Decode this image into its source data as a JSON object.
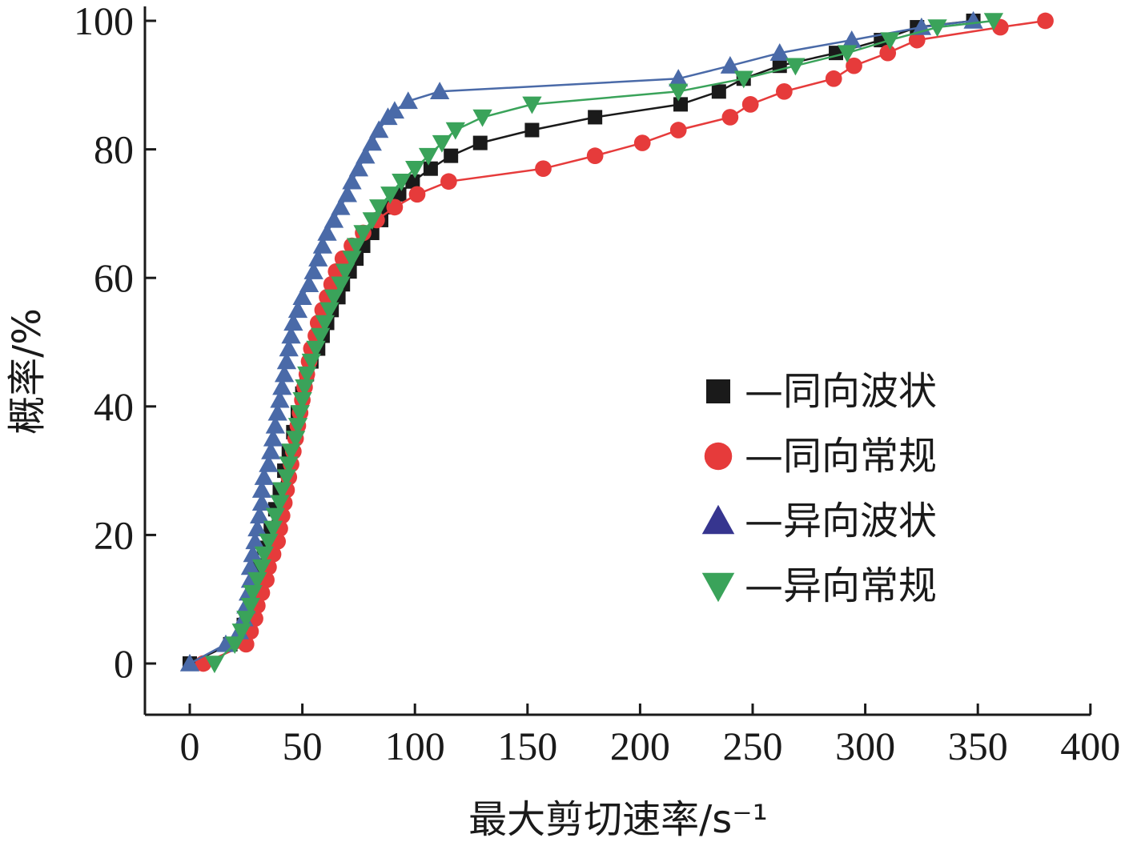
{
  "chart_data": {
    "type": "line",
    "xlabel": "最大剪切速率/s⁻¹",
    "ylabel": "概率/%",
    "xlim": [
      0,
      400
    ],
    "ylim": [
      0,
      100
    ],
    "xticks": [
      0,
      50,
      100,
      150,
      200,
      250,
      300,
      350,
      400
    ],
    "yticks": [
      0,
      20,
      40,
      60,
      80,
      100
    ],
    "grid": false,
    "legend_position": "center-right",
    "series": [
      {
        "name": "—同向波状",
        "marker": "square",
        "color": "#1a1a1a",
        "points": [
          [
            0,
            0
          ],
          [
            18,
            3
          ],
          [
            24,
            6
          ],
          [
            27,
            9
          ],
          [
            29,
            12
          ],
          [
            31,
            15
          ],
          [
            33,
            18
          ],
          [
            36,
            21
          ],
          [
            38,
            24
          ],
          [
            40,
            27
          ],
          [
            42,
            30
          ],
          [
            44,
            33
          ],
          [
            46,
            36
          ],
          [
            48,
            39
          ],
          [
            50,
            42
          ],
          [
            52,
            45
          ],
          [
            54,
            47
          ],
          [
            57,
            49
          ],
          [
            59,
            51
          ],
          [
            61,
            53
          ],
          [
            63,
            55
          ],
          [
            66,
            57
          ],
          [
            68,
            59
          ],
          [
            71,
            61
          ],
          [
            74,
            63
          ],
          [
            77,
            65
          ],
          [
            81,
            67
          ],
          [
            85,
            69
          ],
          [
            88,
            71
          ],
          [
            93,
            73
          ],
          [
            99,
            75
          ],
          [
            107,
            77
          ],
          [
            116,
            79
          ],
          [
            129,
            81
          ],
          [
            152,
            83
          ],
          [
            180,
            85
          ],
          [
            218,
            87
          ],
          [
            235,
            89
          ],
          [
            246,
            91
          ],
          [
            262,
            93
          ],
          [
            287,
            95
          ],
          [
            307,
            97
          ],
          [
            323,
            99
          ],
          [
            348,
            100
          ]
        ]
      },
      {
        "name": "—同向常规",
        "marker": "circle",
        "color": "#e63b3b",
        "points": [
          [
            6,
            0
          ],
          [
            25,
            3
          ],
          [
            27,
            5
          ],
          [
            29,
            7
          ],
          [
            30,
            9
          ],
          [
            32,
            11
          ],
          [
            34,
            13
          ],
          [
            35,
            15
          ],
          [
            37,
            17
          ],
          [
            39,
            19
          ],
          [
            40,
            21
          ],
          [
            41,
            23
          ],
          [
            42,
            25
          ],
          [
            43,
            27
          ],
          [
            44,
            29
          ],
          [
            45,
            31
          ],
          [
            46,
            33
          ],
          [
            47,
            35
          ],
          [
            48,
            37
          ],
          [
            49,
            39
          ],
          [
            50,
            41
          ],
          [
            51,
            43
          ],
          [
            52,
            45
          ],
          [
            53,
            47
          ],
          [
            54,
            49
          ],
          [
            56,
            51
          ],
          [
            57,
            53
          ],
          [
            59,
            55
          ],
          [
            61,
            57
          ],
          [
            63,
            59
          ],
          [
            65,
            61
          ],
          [
            68,
            63
          ],
          [
            72,
            65
          ],
          [
            77,
            67
          ],
          [
            83,
            69
          ],
          [
            91,
            71
          ],
          [
            101,
            73
          ],
          [
            115,
            75
          ],
          [
            157,
            77
          ],
          [
            180,
            79
          ],
          [
            201,
            81
          ],
          [
            217,
            83
          ],
          [
            240,
            85
          ],
          [
            249,
            87
          ],
          [
            264,
            89
          ],
          [
            286,
            91
          ],
          [
            295,
            93
          ],
          [
            310,
            95
          ],
          [
            323,
            97
          ],
          [
            360,
            99
          ],
          [
            380,
            100
          ]
        ]
      },
      {
        "name": "—异向波状",
        "marker": "triangle-up",
        "color": "#4a6aa8",
        "points": [
          [
            0,
            0
          ],
          [
            16,
            3
          ],
          [
            22,
            5
          ],
          [
            24,
            7
          ],
          [
            25,
            9
          ],
          [
            26,
            11
          ],
          [
            27,
            13
          ],
          [
            27,
            15
          ],
          [
            28,
            17
          ],
          [
            29,
            19
          ],
          [
            30,
            21
          ],
          [
            31,
            23
          ],
          [
            32,
            25
          ],
          [
            32,
            27
          ],
          [
            33,
            29
          ],
          [
            35,
            31
          ],
          [
            36,
            33
          ],
          [
            37,
            35
          ],
          [
            38,
            37
          ],
          [
            39,
            39
          ],
          [
            40,
            41
          ],
          [
            41,
            43
          ],
          [
            42,
            45
          ],
          [
            43,
            47
          ],
          [
            44,
            49
          ],
          [
            45,
            51
          ],
          [
            46,
            53
          ],
          [
            48,
            55
          ],
          [
            50,
            57
          ],
          [
            53,
            59
          ],
          [
            55,
            61
          ],
          [
            57,
            63
          ],
          [
            59,
            65
          ],
          [
            61,
            67
          ],
          [
            64,
            69
          ],
          [
            67,
            71
          ],
          [
            70,
            73
          ],
          [
            72,
            75
          ],
          [
            75,
            77
          ],
          [
            78,
            79
          ],
          [
            81,
            81
          ],
          [
            84,
            83
          ],
          [
            88,
            85
          ],
          [
            91,
            86
          ],
          [
            97,
            87.5
          ],
          [
            111,
            89
          ],
          [
            217,
            91
          ],
          [
            240,
            93
          ],
          [
            262,
            95
          ],
          [
            294,
            97
          ],
          [
            325,
            99
          ],
          [
            348,
            100
          ]
        ]
      },
      {
        "name": "—异向常规",
        "marker": "triangle-down",
        "color": "#3aa35a",
        "points": [
          [
            11,
            0
          ],
          [
            20,
            3
          ],
          [
            23,
            5
          ],
          [
            25,
            7
          ],
          [
            27,
            9
          ],
          [
            28,
            11
          ],
          [
            30,
            13
          ],
          [
            32,
            15
          ],
          [
            33,
            17
          ],
          [
            35,
            19
          ],
          [
            37,
            21
          ],
          [
            38,
            23
          ],
          [
            40,
            25
          ],
          [
            41,
            27
          ],
          [
            43,
            29
          ],
          [
            44,
            31
          ],
          [
            45,
            33
          ],
          [
            47,
            35
          ],
          [
            48,
            37
          ],
          [
            49,
            39
          ],
          [
            50,
            41
          ],
          [
            51,
            43
          ],
          [
            52,
            45
          ],
          [
            54,
            47
          ],
          [
            56,
            49
          ],
          [
            58,
            51
          ],
          [
            60,
            53
          ],
          [
            62,
            55
          ],
          [
            64,
            57
          ],
          [
            67,
            59
          ],
          [
            69,
            61
          ],
          [
            72,
            63
          ],
          [
            74,
            65
          ],
          [
            77,
            67
          ],
          [
            81,
            69
          ],
          [
            84,
            71
          ],
          [
            89,
            73
          ],
          [
            94,
            75
          ],
          [
            100,
            77
          ],
          [
            106,
            79
          ],
          [
            112,
            81
          ],
          [
            118,
            83
          ],
          [
            130,
            85
          ],
          [
            152,
            87
          ],
          [
            217,
            89
          ],
          [
            246,
            91
          ],
          [
            269,
            93
          ],
          [
            292,
            95
          ],
          [
            311,
            97
          ],
          [
            332,
            99
          ],
          [
            357,
            100
          ]
        ]
      }
    ]
  }
}
